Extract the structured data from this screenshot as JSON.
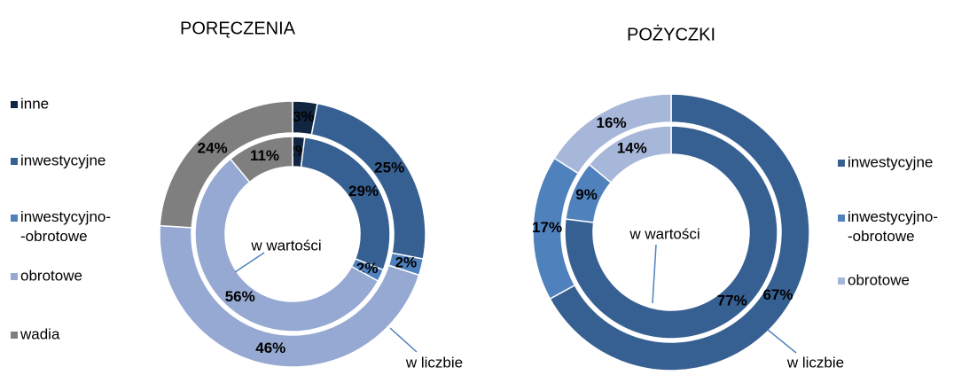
{
  "chart_data": [
    {
      "type": "doughnut",
      "title": "PORĘCZENIA",
      "categories": [
        "inne",
        "inwestycyjne",
        "inwestycyjno-\n-obrotowe",
        "obrotowe",
        "wadia"
      ],
      "colors": [
        "#10253f",
        "#376092",
        "#4f81bd",
        "#95a9d3",
        "#7f7f7f"
      ],
      "legend": "left",
      "series": [
        {
          "name": "w liczbie",
          "values": [
            3,
            25,
            2,
            46,
            24
          ],
          "value_labels": [
            "3%",
            "25%",
            "2%",
            "46%",
            "24%"
          ]
        },
        {
          "name": "w wartości",
          "values": [
            2,
            29,
            2,
            56,
            11
          ],
          "value_labels": [
            "2%",
            "29%",
            "2%",
            "56%",
            "11%"
          ]
        }
      ]
    },
    {
      "type": "doughnut",
      "title": "POŻYCZKI",
      "categories": [
        "inwestycyjne",
        "inwestycyjno-\n-obrotowe",
        "obrotowe"
      ],
      "colors": [
        "#376092",
        "#4f81bd",
        "#a7b7d9"
      ],
      "legend": "right",
      "series": [
        {
          "name": "w liczbie",
          "values": [
            67,
            17,
            16
          ],
          "value_labels": [
            "67%",
            "17%",
            "16%"
          ]
        },
        {
          "name": "w wartości",
          "values": [
            77,
            9,
            14
          ],
          "value_labels": [
            "77%",
            "9%",
            "14%"
          ]
        }
      ]
    }
  ]
}
